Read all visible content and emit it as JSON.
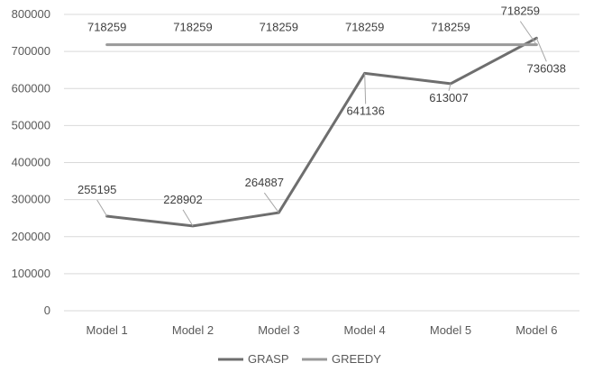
{
  "chart_data": {
    "type": "line",
    "title": "",
    "xlabel": "",
    "ylabel": "",
    "categories": [
      "Model 1",
      "Model 2",
      "Model 3",
      "Model 4",
      "Model 5",
      "Model 6"
    ],
    "ylim": [
      0,
      800000
    ],
    "yticks": [
      "0",
      "100000",
      "200000",
      "300000",
      "400000",
      "500000",
      "600000",
      "700000",
      "800000"
    ],
    "grid": true,
    "legend_position": "bottom",
    "series": [
      {
        "name": "GRASP",
        "color": "#6e6e6e",
        "values": [
          255195,
          228902,
          264887,
          641136,
          613007,
          736038
        ],
        "labels": [
          "255195",
          "228902",
          "264887",
          "641136",
          "613007",
          "736038"
        ]
      },
      {
        "name": "GREEDY",
        "color": "#999999",
        "values": [
          718259,
          718259,
          718259,
          718259,
          718259,
          718259
        ],
        "labels": [
          "718259",
          "718259",
          "718259",
          "718259",
          "718259",
          "718259"
        ]
      }
    ]
  }
}
